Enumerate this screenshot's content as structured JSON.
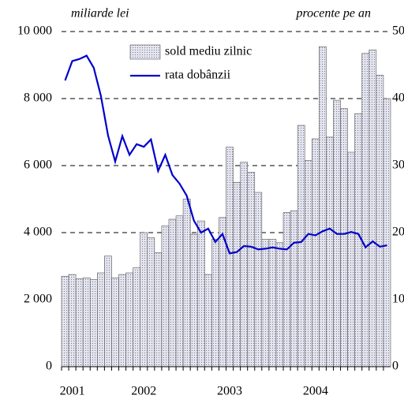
{
  "chart_data": {
    "type": "bar_line",
    "y_label": "miliarde lei",
    "y2_label": "procente pe an",
    "categories": [
      null,
      "2001",
      null,
      null,
      null,
      null,
      null,
      null,
      null,
      null,
      null,
      "2002",
      null,
      null,
      null,
      null,
      null,
      null,
      null,
      null,
      null,
      null,
      null,
      "2003",
      null,
      null,
      null,
      null,
      null,
      null,
      null,
      null,
      null,
      null,
      null,
      "2004",
      null,
      null,
      null,
      null,
      null,
      null,
      null,
      null,
      null,
      null
    ],
    "series": [
      {
        "name": "sold mediu zilnic",
        "type": "bar",
        "color": "#c8c8dc",
        "values": [
          2700,
          2750,
          2620,
          2650,
          2600,
          2800,
          3300,
          2650,
          2750,
          2800,
          2950,
          4000,
          3850,
          3400,
          4200,
          4400,
          4500,
          5000,
          3950,
          4350,
          2750,
          3800,
          4450,
          6550,
          5500,
          6100,
          5800,
          5200,
          3800,
          3800,
          3700,
          4600,
          4650,
          7200,
          6150,
          6800,
          9550,
          6850,
          7950,
          7700,
          6400,
          7550,
          9350,
          9450,
          8700,
          8000
        ]
      },
      {
        "name": "rata dobânzii",
        "type": "line",
        "axis": "y2",
        "color": "#0000cc",
        "values": [
          42.7,
          45.6,
          45.9,
          46.4,
          44.6,
          40.4,
          34.5,
          30.6,
          34.4,
          31.6,
          33.2,
          32.8,
          33.9,
          29.2,
          31.6,
          28.6,
          27.3,
          25.5,
          21.8,
          20,
          20.6,
          18.6,
          19.8,
          16.9,
          17.1,
          18,
          17.9,
          17.5,
          17.6,
          17.8,
          17.6,
          17.5,
          18.5,
          18.6,
          19.8,
          19.6,
          20.2,
          20.6,
          19.8,
          19.8,
          20.1,
          19.8,
          17.8,
          18.7,
          17.9,
          18.1
        ]
      }
    ],
    "ylim": [
      0,
      10000
    ],
    "yticks": [
      0,
      {
        "value": 2000,
        "label": "2 000"
      },
      {
        "value": 4000,
        "label": "4 000"
      },
      {
        "value": 6000,
        "label": "6 000"
      },
      {
        "value": 8000,
        "label": "8 000"
      },
      {
        "value": 10000,
        "label": "10 000"
      }
    ],
    "y2lim": [
      0,
      50
    ],
    "y2ticks": [
      0,
      10,
      20,
      30,
      40,
      50
    ],
    "grid": true,
    "legend": "upper center"
  }
}
